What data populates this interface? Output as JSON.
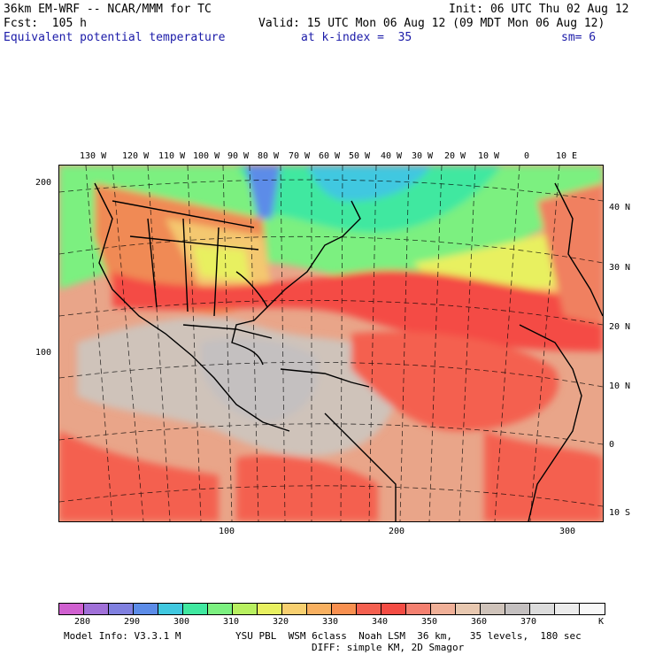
{
  "header": {
    "model": "36km EM-WRF -- NCAR/MMM for TC",
    "init": "Init: 06 UTC Thu 02 Aug 12",
    "fcst": "Fcst:  105 h",
    "valid": "Valid: 15 UTC Mon 06 Aug 12 (09 MDT Mon 06 Aug 12)",
    "field": "Equivalent potential temperature",
    "level": "at k-index =  35",
    "smooth": "sm= 6"
  },
  "map": {
    "lon_labels": [
      "130 W",
      "120 W",
      "110 W",
      "100 W",
      "90 W",
      "80 W",
      "70 W",
      "60 W",
      "50 W",
      "40 W",
      "30 W",
      "20 W",
      "10 W",
      "0",
      "10 E"
    ],
    "lat_labels": [
      "40 N",
      "30 N",
      "20 N",
      "10 N",
      "0",
      "10 S"
    ],
    "y_grid_labels": [
      "200",
      "100"
    ],
    "x_grid_labels": [
      "100",
      "200",
      "300"
    ]
  },
  "colorbar": {
    "unit": "K",
    "tick_labels": [
      "280",
      "290",
      "300",
      "310",
      "320",
      "330",
      "340",
      "350",
      "360",
      "370"
    ],
    "colors": [
      "#d060d0",
      "#a070d8",
      "#8080e0",
      "#5c8ce8",
      "#40c8e0",
      "#40e8a0",
      "#7cf080",
      "#b8f060",
      "#e8f060",
      "#f8d070",
      "#f8b060",
      "#f89050",
      "#f46050",
      "#f44c44",
      "#f48070",
      "#f0b098",
      "#e8c8b0",
      "#cfc3ba",
      "#c4c0c0",
      "#dcdcdc",
      "#ececec",
      "#f8f8f8"
    ]
  },
  "footer": {
    "model_info": "Model Info: V3.3.1 M",
    "physics": "YSU PBL  WSM 6class  Noah LSM  36 km,   35 levels,  180 sec",
    "diffusion": "DIFF: simple KM, 2D Smagor"
  }
}
